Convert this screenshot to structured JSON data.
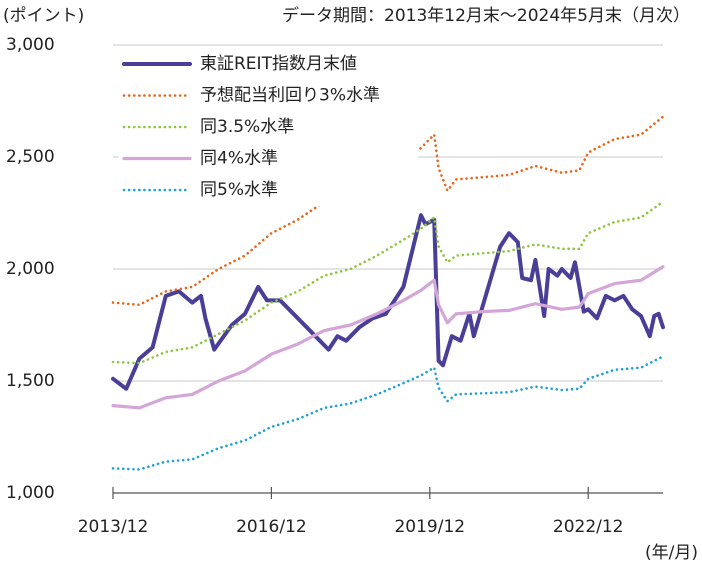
{
  "chart_data": {
    "type": "line",
    "title": "データ期間：2013年12月末～2024年5月末（月次）",
    "y_label": "(ポイント)",
    "x_label": "(年/月)",
    "xlim": [
      "2013/12",
      "2024/05"
    ],
    "xticks": [
      "2013/12",
      "2016/12",
      "2019/12",
      "2022/12"
    ],
    "ylim": [
      1000,
      3000
    ],
    "yticks": [
      {
        "value": 1000,
        "label": "1,000"
      },
      {
        "value": 1500,
        "label": "1,500"
      },
      {
        "value": 2000,
        "label": "2,000"
      },
      {
        "value": 2500,
        "label": "2,500"
      },
      {
        "value": 3000,
        "label": "3,000"
      }
    ],
    "grid": true,
    "legend": "upper left",
    "x": [
      "2013/12",
      "2014/06",
      "2014/12",
      "2015/06",
      "2015/12",
      "2016/06",
      "2016/12",
      "2017/06",
      "2017/12",
      "2018/06",
      "2018/12",
      "2019/06",
      "2019/10",
      "2020/01",
      "2020/02",
      "2020/04",
      "2020/06",
      "2020/12",
      "2021/06",
      "2021/12",
      "2022/06",
      "2022/10",
      "2022/12",
      "2023/06",
      "2023/12",
      "2024/05"
    ],
    "series": [
      {
        "name": "東証REIT指数月末値",
        "color": "#4a3f98",
        "style": "solid",
        "x": [
          "2013/12",
          "2014/03",
          "2014/06",
          "2014/09",
          "2014/12",
          "2015/03",
          "2015/06",
          "2015/08",
          "2015/09",
          "2015/11",
          "2016/03",
          "2016/06",
          "2016/09",
          "2016/11",
          "2017/02",
          "2017/05",
          "2017/08",
          "2017/11",
          "2018/01",
          "2018/03",
          "2018/05",
          "2018/08",
          "2018/11",
          "2019/02",
          "2019/06",
          "2019/10",
          "2019/11",
          "2020/01",
          "2020/02",
          "2020/03",
          "2020/05",
          "2020/07",
          "2020/09",
          "2020/10",
          "2021/01",
          "2021/04",
          "2021/06",
          "2021/08",
          "2021/09",
          "2021/11",
          "2021/12",
          "2022/02",
          "2022/03",
          "2022/05",
          "2022/06",
          "2022/08",
          "2022/09",
          "2022/11",
          "2022/12",
          "2023/02",
          "2023/04",
          "2023/06",
          "2023/08",
          "2023/10",
          "2023/12",
          "2024/02",
          "2024/03",
          "2024/04",
          "2024/05"
        ],
        "values": [
          1510,
          1465,
          1600,
          1650,
          1880,
          1900,
          1850,
          1880,
          1780,
          1640,
          1750,
          1800,
          1920,
          1860,
          1860,
          1800,
          1740,
          1680,
          1640,
          1700,
          1680,
          1740,
          1780,
          1800,
          1920,
          2240,
          2200,
          2220,
          1590,
          1570,
          1700,
          1680,
          1800,
          1700,
          1900,
          2100,
          2160,
          2120,
          1960,
          1950,
          2040,
          1790,
          2000,
          1970,
          2000,
          1960,
          2030,
          1810,
          1820,
          1780,
          1880,
          1860,
          1880,
          1820,
          1790,
          1700,
          1790,
          1800,
          1740
        ]
      },
      {
        "name": "予想配当利回り3%水準",
        "color": "#e8661a",
        "style": "dotted",
        "values": [
          1850,
          1840,
          1900,
          1920,
          2000,
          2060,
          2160,
          2220,
          2300,
          2330,
          2400,
          2480,
          2540,
          2600,
          2450,
          2350,
          2400,
          2410,
          2420,
          2460,
          2430,
          2440,
          2520,
          2580,
          2600,
          2680
        ]
      },
      {
        "name": "同3.5%水準",
        "color": "#8dc63f",
        "style": "dotted",
        "values": [
          1585,
          1580,
          1630,
          1650,
          1710,
          1770,
          1850,
          1900,
          1970,
          2000,
          2060,
          2130,
          2180,
          2230,
          2100,
          2030,
          2060,
          2070,
          2080,
          2110,
          2090,
          2090,
          2160,
          2210,
          2230,
          2300
        ]
      },
      {
        "name": "同4%水準",
        "color": "#d4a6d8",
        "style": "solid",
        "values": [
          1390,
          1380,
          1425,
          1440,
          1500,
          1545,
          1620,
          1665,
          1725,
          1750,
          1800,
          1860,
          1905,
          1950,
          1840,
          1760,
          1800,
          1810,
          1815,
          1845,
          1820,
          1830,
          1890,
          1935,
          1950,
          2010
        ]
      },
      {
        "name": "同5%水準",
        "color": "#1ea0d8",
        "style": "dotted",
        "values": [
          1110,
          1105,
          1140,
          1150,
          1200,
          1235,
          1295,
          1330,
          1380,
          1400,
          1440,
          1490,
          1525,
          1560,
          1470,
          1410,
          1440,
          1445,
          1450,
          1475,
          1460,
          1465,
          1510,
          1550,
          1560,
          1610
        ]
      }
    ]
  }
}
